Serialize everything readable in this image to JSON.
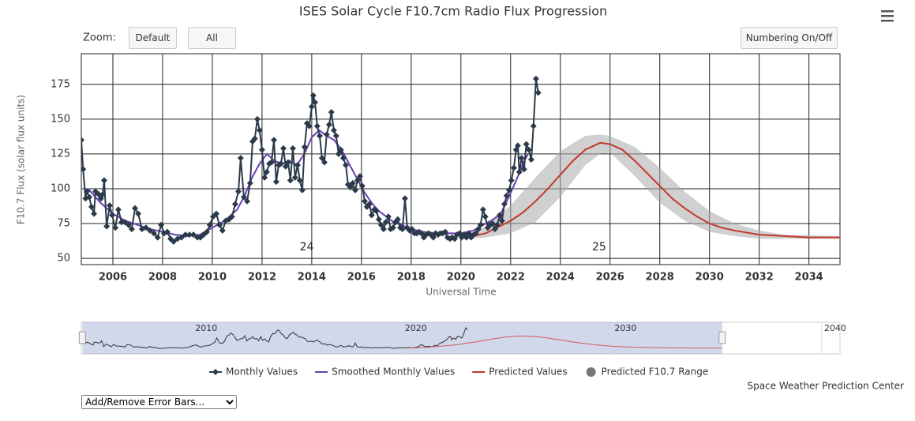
{
  "chart_data": {
    "type": "line",
    "title": "ISES Solar Cycle F10.7cm Radio Flux Progression",
    "x_label": "Universal Time",
    "y_label": "F10.7 Flux (solar flux units)",
    "xlim": [
      2004.73,
      2035.25
    ],
    "ylim": [
      45.5,
      197
    ],
    "xticks": [
      2006,
      2008,
      2010,
      2012,
      2014,
      2016,
      2018,
      2020,
      2022,
      2024,
      2026,
      2028,
      2030,
      2032,
      2034
    ],
    "yticks": [
      50,
      75,
      100,
      125,
      150,
      175
    ],
    "grid": true,
    "series": [
      {
        "name": "Monthly Values",
        "kind": "markers-line",
        "color": "#2b3a4a",
        "x": [
          2004.73,
          2004.8,
          2004.9,
          2004.95,
          2005.05,
          2005.14,
          2005.24,
          2005.3,
          2005.43,
          2005.52,
          2005.59,
          2005.65,
          2005.75,
          2005.87,
          2005.97,
          2006.1,
          2006.22,
          2006.35,
          2006.48,
          2006.63,
          2006.76,
          2006.89,
          2007.02,
          2007.17,
          2007.33,
          2007.49,
          2007.65,
          2007.8,
          2007.94,
          2008.06,
          2008.19,
          2008.32,
          2008.44,
          2008.6,
          2008.76,
          2008.92,
          2009.08,
          2009.24,
          2009.4,
          2009.52,
          2009.65,
          2009.78,
          2009.9,
          2010.03,
          2010.16,
          2010.29,
          2010.41,
          2010.54,
          2010.67,
          2010.79,
          2010.92,
          2011.05,
          2011.14,
          2011.27,
          2011.4,
          2011.52,
          2011.62,
          2011.71,
          2011.81,
          2011.9,
          2012.0,
          2012.1,
          2012.19,
          2012.29,
          2012.38,
          2012.48,
          2012.57,
          2012.67,
          2012.76,
          2012.86,
          2012.95,
          2013.05,
          2013.14,
          2013.24,
          2013.33,
          2013.43,
          2013.52,
          2013.62,
          2013.71,
          2013.81,
          2013.9,
          2014.0,
          2014.06,
          2014.13,
          2014.22,
          2014.32,
          2014.41,
          2014.51,
          2014.6,
          2014.7,
          2014.79,
          2014.89,
          2014.98,
          2015.08,
          2015.17,
          2015.27,
          2015.37,
          2015.46,
          2015.56,
          2015.65,
          2015.75,
          2015.84,
          2015.94,
          2016.03,
          2016.13,
          2016.22,
          2016.32,
          2016.41,
          2016.51,
          2016.6,
          2016.7,
          2016.79,
          2016.89,
          2016.98,
          2017.08,
          2017.17,
          2017.27,
          2017.37,
          2017.46,
          2017.56,
          2017.65,
          2017.75,
          2017.84,
          2017.94,
          2018.03,
          2018.13,
          2018.22,
          2018.32,
          2018.41,
          2018.51,
          2018.6,
          2018.7,
          2018.79,
          2018.89,
          2018.98,
          2019.08,
          2019.17,
          2019.27,
          2019.37,
          2019.46,
          2019.56,
          2019.65,
          2019.75,
          2019.84,
          2019.94,
          2020.03,
          2020.13,
          2020.22,
          2020.32,
          2020.41,
          2020.51,
          2020.6,
          2020.7,
          2020.79,
          2020.89,
          2020.98,
          2021.08,
          2021.17,
          2021.27,
          2021.37,
          2021.46,
          2021.56,
          2021.65,
          2021.75,
          2021.84,
          2021.94,
          2022.03,
          2022.13,
          2022.22,
          2022.29,
          2022.35,
          2022.44,
          2022.54,
          2022.63,
          2022.73,
          2022.83,
          2022.92,
          2023.02,
          2023.11
        ],
        "values": [
          135,
          114,
          93,
          98,
          94,
          87,
          82,
          98,
          96,
          93,
          96,
          106,
          73,
          88,
          81,
          72,
          85,
          76,
          76,
          74,
          71,
          86,
          82,
          71,
          72,
          70,
          68,
          65,
          74,
          68,
          69,
          64,
          62,
          64,
          65,
          67,
          67,
          67,
          65,
          65,
          67,
          69,
          74,
          80,
          82,
          74,
          70,
          77,
          78,
          80,
          89,
          98,
          122,
          94,
          91,
          104,
          134,
          136,
          150,
          142,
          128,
          108,
          112,
          118,
          119,
          135,
          105,
          117,
          118,
          129,
          116,
          119,
          106,
          129,
          108,
          117,
          106,
          99,
          130,
          147,
          145,
          159,
          167,
          162,
          145,
          138,
          122,
          119,
          139,
          146,
          155,
          142,
          138,
          125,
          128,
          122,
          117,
          103,
          101,
          104,
          99,
          106,
          109,
          102,
          91,
          87,
          89,
          81,
          85,
          84,
          78,
          74,
          71,
          76,
          80,
          71,
          72,
          76,
          78,
          72,
          71,
          93,
          72,
          70,
          71,
          68,
          68,
          69,
          68,
          65,
          67,
          68,
          67,
          65,
          68,
          67,
          68,
          68,
          69,
          65,
          64,
          65,
          64,
          67,
          68,
          65,
          67,
          65,
          68,
          65,
          67,
          68,
          71,
          74,
          85,
          80,
          72,
          74,
          75,
          71,
          74,
          81,
          77,
          89,
          95,
          99,
          106,
          115,
          128,
          131,
          112,
          122,
          114,
          132,
          128,
          121,
          145,
          179,
          169
        ]
      },
      {
        "name": "Smoothed Monthly Values",
        "kind": "line",
        "color": "#6a3fb5",
        "x": [
          2005.0,
          2005.5,
          2006.0,
          2006.5,
          2007.0,
          2007.5,
          2008.0,
          2008.5,
          2009.0,
          2009.5,
          2010.0,
          2010.5,
          2011.0,
          2011.3,
          2011.6,
          2011.9,
          2012.2,
          2012.5,
          2012.8,
          2013.1,
          2013.4,
          2013.7,
          2014.0,
          2014.3,
          2014.6,
          2014.9,
          2015.2,
          2015.5,
          2015.8,
          2016.1,
          2016.4,
          2016.7,
          2017.0,
          2017.3,
          2017.6,
          2018.0,
          2018.5,
          2019.0,
          2019.5,
          2020.0,
          2020.5,
          2020.9,
          2021.3,
          2021.6,
          2021.9,
          2022.2,
          2022.5,
          2022.7
        ],
        "values": [
          100,
          90,
          82,
          77,
          74,
          71,
          69,
          67,
          66,
          67,
          72,
          77,
          85,
          95,
          108,
          118,
          125,
          120,
          118,
          120,
          117,
          125,
          137,
          142,
          138,
          135,
          128,
          118,
          108,
          98,
          90,
          84,
          80,
          76,
          74,
          71,
          69,
          68,
          68,
          68,
          70,
          74,
          78,
          82,
          93,
          105,
          118,
          125
        ]
      },
      {
        "name": "Predicted Values",
        "kind": "line",
        "color": "#c0392b",
        "x": [
          2020.25,
          2021,
          2022,
          2022.5,
          2023,
          2023.5,
          2024,
          2024.5,
          2025,
          2025.6,
          2026,
          2026.5,
          2027,
          2027.5,
          2028,
          2028.5,
          2029,
          2029.5,
          2030,
          2030.5,
          2031,
          2032,
          2033,
          2034,
          2035.25
        ],
        "values": [
          65,
          68,
          77,
          83,
          91,
          100,
          110,
          120,
          128,
          133,
          132,
          128,
          120,
          111,
          102,
          93,
          86,
          80,
          75,
          72,
          70,
          67,
          66,
          65,
          65
        ]
      },
      {
        "name": "Predicted F10.7 Range",
        "kind": "range",
        "color": "#a9a9a9",
        "x": [
          2020.25,
          2021,
          2022,
          2023,
          2024,
          2025,
          2025.6,
          2026,
          2027,
          2028,
          2029,
          2030,
          2031,
          2032,
          2033,
          2035.25
        ],
        "high": [
          66,
          73,
          88,
          108,
          127,
          138,
          139,
          138,
          130,
          115,
          98,
          84,
          75,
          70,
          67,
          66
        ],
        "low": [
          64,
          65,
          68,
          76,
          94,
          117,
          125,
          126,
          109,
          90,
          77,
          69,
          66,
          64,
          64,
          64
        ]
      }
    ],
    "annotations": [
      {
        "text": "24",
        "x": 2013.8,
        "y": 58
      },
      {
        "text": "25",
        "x": 2025.56,
        "y": 58
      }
    ],
    "navigator": {
      "xlim": [
        2004.68,
        2040.87
      ],
      "xticks": [
        2010,
        2020,
        2030,
        2040
      ]
    }
  },
  "ui": {
    "zoom_label": "Zoom:",
    "zoom_buttons": [
      "Default",
      "All"
    ],
    "numbering_button": "Numbering On/Off",
    "credit": "Space Weather Prediction Center",
    "error_bars_select": "Add/Remove Error Bars..."
  }
}
